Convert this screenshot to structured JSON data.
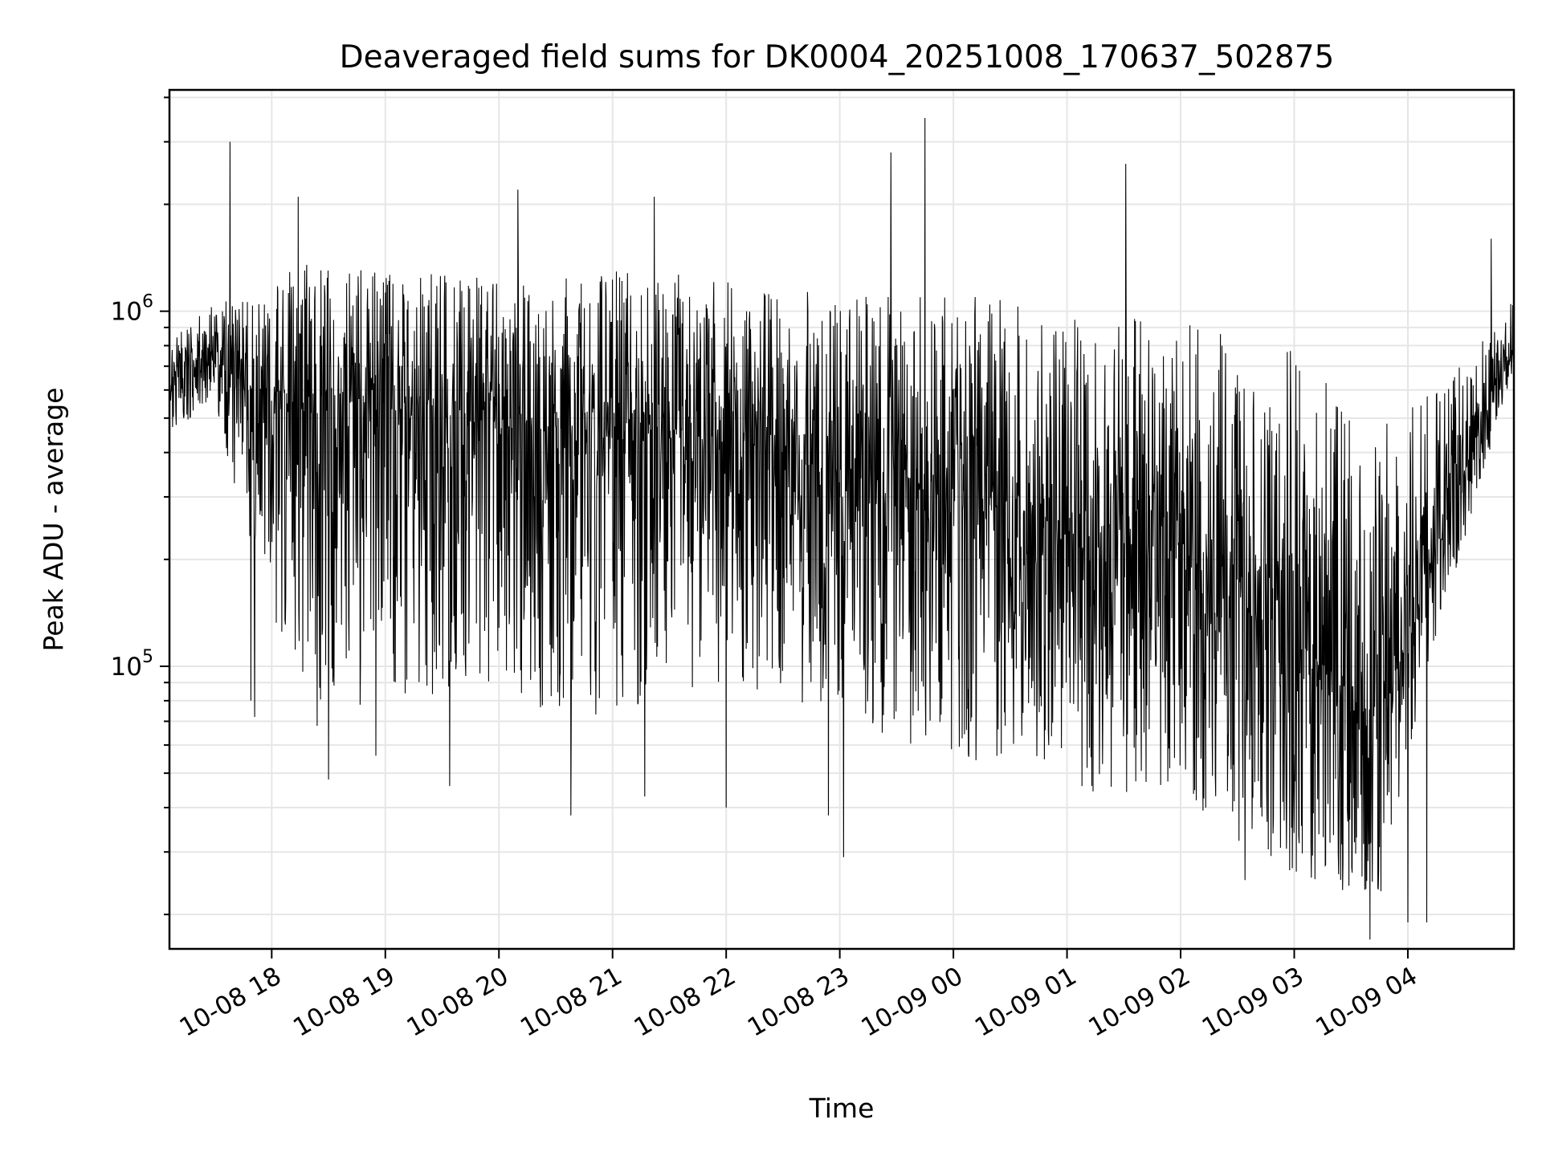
{
  "chart_data": {
    "type": "line",
    "title": "Deaveraged field sums for DK0004_20251008_170637_502875",
    "xlabel": "Time",
    "ylabel": "Peak ADU - average",
    "yscale": "log",
    "ylim": [
      16000,
      4200000
    ],
    "xlim": [
      "2025-10-08 17:06",
      "2025-10-09 04:56"
    ],
    "grid": true,
    "line_color": "#000000",
    "x_ticks": [
      {
        "label": "10-08 18",
        "time": "2025-10-08 18:00"
      },
      {
        "label": "10-08 19",
        "time": "2025-10-08 19:00"
      },
      {
        "label": "10-08 20",
        "time": "2025-10-08 20:00"
      },
      {
        "label": "10-08 21",
        "time": "2025-10-08 21:00"
      },
      {
        "label": "10-08 22",
        "time": "2025-10-08 22:00"
      },
      {
        "label": "10-08 23",
        "time": "2025-10-08 23:00"
      },
      {
        "label": "10-09 00",
        "time": "2025-10-09 00:00"
      },
      {
        "label": "10-09 01",
        "time": "2025-10-09 01:00"
      },
      {
        "label": "10-09 02",
        "time": "2025-10-09 02:00"
      },
      {
        "label": "10-09 03",
        "time": "2025-10-09 03:00"
      },
      {
        "label": "10-09 04",
        "time": "2025-10-09 04:00"
      }
    ],
    "y_ticks": [
      {
        "base": "10",
        "exp": "5",
        "value": 100000
      },
      {
        "base": "10",
        "exp": "6",
        "value": 1000000
      }
    ],
    "envelope": [
      {
        "time": "2025-10-08 17:06",
        "median": 700000,
        "low": 450000,
        "high": 850000
      },
      {
        "time": "2025-10-08 17:30",
        "median": 750000,
        "low": 560000,
        "high": 1050000
      },
      {
        "time": "2025-10-08 17:45",
        "median": 600000,
        "low": 250000,
        "high": 1100000
      },
      {
        "time": "2025-10-08 18:00",
        "median": 520000,
        "low": 90000,
        "high": 1300000
      },
      {
        "time": "2025-10-08 18:30",
        "median": 580000,
        "low": 70000,
        "high": 1400000
      },
      {
        "time": "2025-10-08 19:00",
        "median": 520000,
        "low": 80000,
        "high": 1300000
      },
      {
        "time": "2025-10-08 20:00",
        "median": 470000,
        "low": 80000,
        "high": 1250000
      },
      {
        "time": "2025-10-08 21:00",
        "median": 440000,
        "low": 70000,
        "high": 1300000
      },
      {
        "time": "2025-10-08 22:00",
        "median": 440000,
        "low": 90000,
        "high": 1250000
      },
      {
        "time": "2025-10-08 23:00",
        "median": 340000,
        "low": 70000,
        "high": 1100000
      },
      {
        "time": "2025-10-09 00:00",
        "median": 330000,
        "low": 55000,
        "high": 1150000
      },
      {
        "time": "2025-10-09 01:00",
        "median": 240000,
        "low": 45000,
        "high": 1000000
      },
      {
        "time": "2025-10-09 02:00",
        "median": 210000,
        "low": 42000,
        "high": 950000
      },
      {
        "time": "2025-10-09 03:00",
        "median": 120000,
        "low": 25000,
        "high": 800000
      },
      {
        "time": "2025-10-09 03:45",
        "median": 70000,
        "low": 22000,
        "high": 500000
      },
      {
        "time": "2025-10-09 04:15",
        "median": 220000,
        "low": 120000,
        "high": 600000
      },
      {
        "time": "2025-10-09 04:56",
        "median": 800000,
        "low": 700000,
        "high": 1100000
      }
    ],
    "spikes": [
      {
        "time": "2025-10-08 17:38",
        "value": 3000000
      },
      {
        "time": "2025-10-08 17:49",
        "value": 80000
      },
      {
        "time": "2025-10-08 17:51",
        "value": 72000
      },
      {
        "time": "2025-10-08 18:14",
        "value": 2100000
      },
      {
        "time": "2025-10-08 18:24",
        "value": 68000
      },
      {
        "time": "2025-10-08 18:30",
        "value": 48000
      },
      {
        "time": "2025-10-08 18:55",
        "value": 56000
      },
      {
        "time": "2025-10-08 19:34",
        "value": 46000
      },
      {
        "time": "2025-10-08 20:10",
        "value": 2200000
      },
      {
        "time": "2025-10-08 20:38",
        "value": 38000
      },
      {
        "time": "2025-10-08 21:17",
        "value": 43000
      },
      {
        "time": "2025-10-08 21:22",
        "value": 2100000
      },
      {
        "time": "2025-10-08 22:00",
        "value": 40000
      },
      {
        "time": "2025-10-08 22:54",
        "value": 38000
      },
      {
        "time": "2025-10-08 23:02",
        "value": 29000
      },
      {
        "time": "2025-10-08 23:27",
        "value": 2800000
      },
      {
        "time": "2025-10-08 23:45",
        "value": 3500000
      },
      {
        "time": "2025-10-09 01:31",
        "value": 2600000
      },
      {
        "time": "2025-10-09 02:34",
        "value": 25000
      },
      {
        "time": "2025-10-09 02:59",
        "value": 27000
      },
      {
        "time": "2025-10-09 03:40",
        "value": 17000
      },
      {
        "time": "2025-10-09 04:00",
        "value": 19000
      },
      {
        "time": "2025-10-09 04:10",
        "value": 19000
      },
      {
        "time": "2025-10-09 04:44",
        "value": 1600000
      }
    ]
  }
}
